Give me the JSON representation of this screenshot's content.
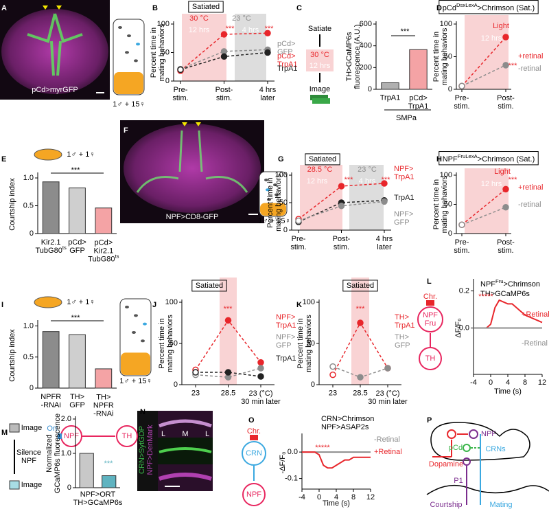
{
  "panel_labels": [
    "A",
    "B",
    "C",
    "D",
    "E",
    "F",
    "G",
    "H",
    "I",
    "J",
    "K",
    "L",
    "M",
    "N",
    "O",
    "P"
  ],
  "figure_texts": [
    "pCd>myrGFP",
    "1♂ + 15♀",
    "Satiate",
    "30 °C",
    "12 hrs",
    "Image",
    "NPF>CD8-GFP",
    "1♂ + 15♀",
    "1♂ + 15♀",
    "Chr.",
    "NPF\nFru",
    "TH",
    "Ort",
    "NPF",
    "TH",
    "Image",
    "Silence\nNPF",
    "Image",
    "CRN>SytGDP",
    "NPF>DenMark",
    "L",
    "M",
    "L",
    "Chr.",
    "CRN",
    "NPF",
    "CRN>Chrimson",
    "NPF>ASAP2s",
    "NPF",
    "pCd",
    "CRNs",
    "Dopamine",
    "P1",
    "Courtship",
    "Mating"
  ],
  "chart_data": [
    {
      "type": "line",
      "title": "Satiated",
      "ylabel": "Percent time in\nmating behaviors",
      "categories": [
        "Pre-\nstim.",
        "Post-\nstim.",
        "4 hrs\nlater"
      ],
      "ylim": [
        0,
        100
      ],
      "yticks": [
        0,
        50,
        100
      ],
      "series": [
        {
          "name": "pCd>\nTrpA1",
          "color": "#e8262b",
          "values": [
            18,
            82,
            84
          ]
        },
        {
          "name": "pCd>\nGFP",
          "color": "#8c8c8c",
          "values": [
            21,
            52,
            55
          ]
        },
        {
          "name": "TrpA1",
          "color": "#222222",
          "values": [
            20,
            43,
            50
          ]
        }
      ],
      "annotations": [
        "30 °C",
        "12 hrs",
        "23 °C",
        "4 hrs",
        "***",
        "***"
      ]
    },
    {
      "type": "bar",
      "ylabel": "TH>GCaMP6s\nfluorescence (A.U.)",
      "categories": [
        "TrpA1",
        "pCd>\nTrpA1"
      ],
      "values": [
        60,
        365
      ],
      "colors": [
        "#b0b0b0",
        "#f4a3a5"
      ],
      "ylim": [
        0,
        600
      ],
      "yticks": [
        0,
        200,
        400,
        600
      ],
      "annotations": [
        "***",
        "SMPa"
      ]
    },
    {
      "type": "line",
      "title": [
        "pCd",
        "DsxLexA",
        ">Chrimson (Sat.)"
      ],
      "ylabel": "Percent time in\nmating behaviors",
      "categories": [
        "Pre-\nstim.",
        "Post-\nstim."
      ],
      "ylim": [
        0,
        100
      ],
      "yticks": [
        0,
        50,
        100
      ],
      "series": [
        {
          "name": "+retinal",
          "color": "#e8262b",
          "values": [
            5,
            80
          ]
        },
        {
          "name": "-retinal",
          "color": "#8c8c8c",
          "values": [
            5,
            37
          ]
        }
      ],
      "annotations": [
        "Light",
        "12 hrs",
        "***"
      ]
    },
    {
      "type": "bar",
      "ylabel": "Courtship index",
      "categories": [
        [
          "Kir2.1\nTubG80",
          "ts"
        ],
        "pCd>\nGFP",
        [
          "pCd>\nKir2.1\nTubG80",
          "ts"
        ]
      ],
      "values": [
        0.93,
        0.82,
        0.46
      ],
      "colors": [
        "#8c8c8c",
        "#cfcfcf",
        "#f4a3a5"
      ],
      "ylim": [
        0,
        1.05
      ],
      "yticks": [
        0,
        0.5,
        {
          "value": 1,
          "label": "1.0"
        }
      ],
      "annotations": [
        "1♂ + 1♀",
        "***"
      ]
    },
    {
      "type": "line",
      "title": "Satiated",
      "ylabel": "Percent time in\nmating behaviors",
      "categories": [
        "Pre-\nstim.",
        "Post-\nstim.",
        "4 hrs\nlater"
      ],
      "ylim": [
        0,
        100
      ],
      "yticks": [
        0,
        50,
        100
      ],
      "series": [
        {
          "name": "NPF>\nTrpA1",
          "color": "#e8262b",
          "values": [
            20,
            80,
            85
          ]
        },
        {
          "name": "TrpA1",
          "color": "#222222",
          "values": [
            15,
            50,
            54
          ]
        },
        {
          "name": "NPF>\nGFP",
          "color": "#8c8c8c",
          "values": [
            17,
            44,
            52
          ]
        }
      ],
      "annotations": [
        "28.5 °C",
        "12 hrs",
        "23 °C",
        "4 hrs",
        "***",
        "***"
      ]
    },
    {
      "type": "line",
      "title": [
        "NPF",
        "FruLexA",
        ">Chrimson (Sat.)"
      ],
      "ylabel": "Percent time in\nmating behaviors",
      "categories": [
        "Pre-\nstim.",
        "Post-\nstim."
      ],
      "ylim": [
        0,
        100
      ],
      "yticks": [
        0,
        50,
        100
      ],
      "series": [
        {
          "name": "+retinal",
          "color": "#e8262b",
          "values": [
            15,
            76
          ]
        },
        {
          "name": "-retinal",
          "color": "#8c8c8c",
          "values": [
            15,
            45
          ]
        }
      ],
      "annotations": [
        "Light",
        "12 hrs",
        "***"
      ]
    },
    {
      "type": "bar",
      "ylabel": "Courtship index",
      "categories": [
        "NPFR\n-RNAi",
        "TH>\nGFP",
        "TH>\nNPFR\n-RNAi"
      ],
      "values": [
        0.91,
        0.86,
        0.31
      ],
      "colors": [
        "#8c8c8c",
        "#cfcfcf",
        "#f4a3a5"
      ],
      "ylim": [
        0,
        1.05
      ],
      "yticks": [
        0,
        0.5,
        {
          "value": 1,
          "label": "1.0"
        }
      ],
      "annotations": [
        "1♂ + 1♀",
        "***"
      ]
    },
    {
      "type": "line",
      "title": "Satiated",
      "ylabel": "Percent time in\nmating behaviors",
      "categories": [
        "23",
        "28.5",
        "23 (°C)\n30 min later"
      ],
      "ylim": [
        0,
        100
      ],
      "yticks": [
        0,
        50,
        100
      ],
      "series": [
        {
          "name": "NPF>\nTrpA1",
          "color": "#e8262b",
          "values": [
            18,
            78,
            27
          ]
        },
        {
          "name": "NPF>\nGFP",
          "color": "#8c8c8c",
          "values": [
            12,
            9,
            20
          ]
        },
        {
          "name": "TrpA1",
          "color": "#222222",
          "values": [
            15,
            15,
            10
          ]
        }
      ],
      "annotations": [
        "***"
      ]
    },
    {
      "type": "line",
      "title": "Satiated",
      "ylabel": "Percent time in\nmating behaviors",
      "categories": [
        "23",
        "28.5",
        "23 (°C)\n30 min later"
      ],
      "ylim": [
        0,
        100
      ],
      "yticks": [
        0,
        50,
        100
      ],
      "series": [
        {
          "name": "TH>\nTrpA1",
          "color": "#e8262b",
          "values": [
            12,
            75,
            20
          ]
        },
        {
          "name": "TH>\nGFP",
          "color": "#8c8c8c",
          "values": [
            22,
            9,
            20
          ]
        }
      ],
      "annotations": [
        "***"
      ]
    },
    {
      "type": "line",
      "xlabel": "Time (s)",
      "ylabel": "ΔF/F₀",
      "x": [
        -4,
        -3,
        -2,
        -1,
        0,
        1,
        2,
        3,
        4,
        5,
        6,
        7,
        8,
        9,
        10,
        11,
        12
      ],
      "xlim": [
        -4,
        12
      ],
      "xticks": [
        -4,
        0,
        4,
        8,
        12
      ],
      "ylim": [
        -0.25,
        0.25
      ],
      "yticks": [
        {
          "value": 0,
          "label": "0.0"
        },
        {
          "value": 0.2,
          "label": "0.2"
        }
      ],
      "series": [
        {
          "name": "+Retinal",
          "color": "#e8262b",
          "values": [
            0,
            0,
            0,
            0,
            0.02,
            0.11,
            0.15,
            0.14,
            0.13,
            0.13,
            0.11,
            0.09,
            0.07,
            0.06,
            0.05,
            0.04,
            0.03
          ]
        },
        {
          "name": "-Retinal",
          "color": "#8c8c8c",
          "values": [
            0,
            0,
            0,
            0,
            0,
            0,
            0,
            0,
            0,
            0,
            0,
            0,
            0,
            0,
            0,
            0,
            0
          ]
        }
      ],
      "annotations": [
        [
          "NPF",
          "Fru",
          ">Chrimson"
        ],
        "TH>GCaMP6s",
        "*****"
      ]
    },
    {
      "type": "bar",
      "ylabel": "Normalized\nGCaMP6s fluorescence",
      "xlabel": "NPF>ORT\nTH>GCaMP6s",
      "categories": [
        null,
        null
      ],
      "values": [
        1.0,
        0.35
      ],
      "colors": [
        "#c8c8c8",
        "#5fb3c0"
      ],
      "ylim": [
        0,
        2.0
      ],
      "yticks": [
        0,
        {
          "value": 1,
          "label": "1.0"
        },
        {
          "value": 2,
          "label": "2.0"
        }
      ],
      "annotations": [
        "***"
      ]
    },
    {
      "type": "line",
      "xlabel": "Time (s)",
      "ylabel": "-ΔF/F₀",
      "x": [
        -4,
        -3,
        -2,
        -1,
        0,
        1,
        2,
        3,
        4,
        5,
        6,
        7,
        8,
        9,
        10,
        11,
        12
      ],
      "xlim": [
        -4,
        12
      ],
      "xticks": [
        -4,
        0,
        4,
        8,
        12
      ],
      "ylim": [
        -0.14,
        0.06
      ],
      "yticks": [
        {
          "value": 0,
          "label": "0.0"
        },
        {
          "value": -0.1,
          "label": "-0.1"
        }
      ],
      "series": [
        {
          "name": "-Retinal",
          "color": "#8c8c8c",
          "values": [
            0,
            0,
            0,
            0,
            0,
            0,
            0,
            0,
            0,
            0,
            0,
            0,
            0,
            0,
            0,
            0,
            0
          ]
        },
        {
          "name": "+Retinal",
          "color": "#e8262b",
          "values": [
            0,
            0,
            0,
            0,
            -0.01,
            -0.05,
            -0.06,
            -0.06,
            -0.05,
            -0.04,
            -0.03,
            -0.03,
            -0.02,
            -0.02,
            -0.02,
            -0.02,
            -0.02
          ]
        }
      ],
      "annotations": [
        "*****"
      ]
    }
  ]
}
